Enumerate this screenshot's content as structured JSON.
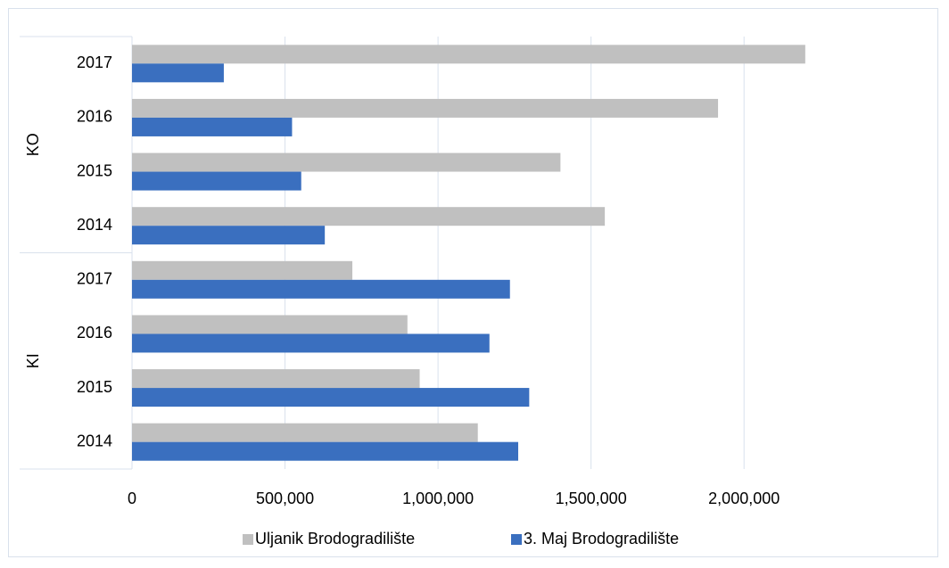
{
  "chart_data": {
    "type": "bar",
    "orientation": "horizontal",
    "groups": [
      {
        "label": "KO",
        "categories": [
          "2017",
          "2016",
          "2015",
          "2014"
        ]
      },
      {
        "label": "KI",
        "categories": [
          "2017",
          "2016",
          "2015",
          "2014"
        ]
      }
    ],
    "series": [
      {
        "name": "Uljanik Brodogradilište",
        "color": "#c0c0c0",
        "values": [
          2200000,
          1915000,
          1400000,
          1545000,
          720000,
          900000,
          940000,
          1130000
        ]
      },
      {
        "name": "3. Maj Brodogradilište",
        "color": "#3a6fbf",
        "values": [
          300000,
          523000,
          553000,
          630000,
          1235000,
          1168000,
          1298000,
          1262000
        ]
      }
    ],
    "xlim": [
      0,
      2250000
    ],
    "x_ticks": [
      "0",
      "500,000",
      "1,000,000",
      "1,500,000",
      "2,000,000"
    ],
    "x_tick_values": [
      0,
      500000,
      1000000,
      1500000,
      2000000
    ],
    "grid": "vertical",
    "legend_position": "bottom"
  }
}
